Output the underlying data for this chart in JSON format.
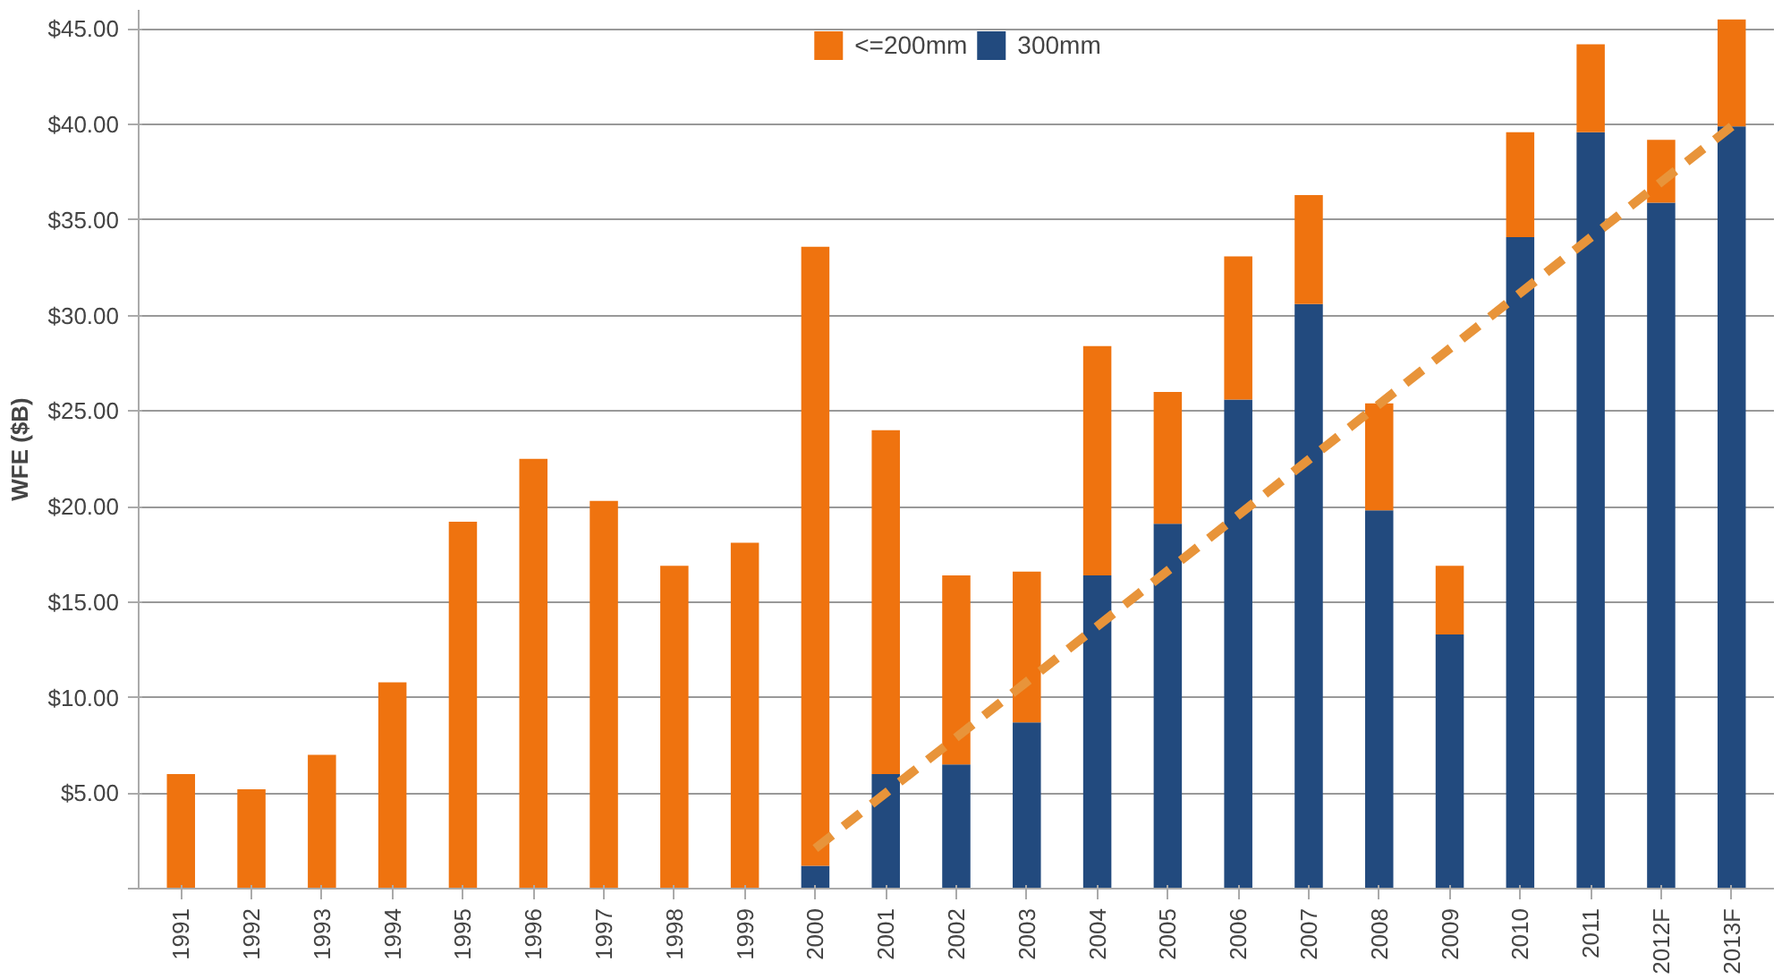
{
  "chart_data": {
    "type": "bar",
    "stacked": true,
    "ylabel": "WFE ($B)",
    "categories": [
      "1991",
      "1992",
      "1993",
      "1994",
      "1995",
      "1996",
      "1997",
      "1998",
      "1999",
      "2000",
      "2001",
      "2002",
      "2003",
      "2004",
      "2005",
      "2006",
      "2007",
      "2008",
      "2009",
      "2010",
      "2011",
      "2012F",
      "2013F"
    ],
    "series": [
      {
        "name": "300mm",
        "color": "#224a7e",
        "values": [
          0,
          0,
          0,
          0,
          0,
          0,
          0,
          0,
          0,
          1.2,
          6.0,
          6.5,
          8.7,
          16.4,
          19.1,
          25.6,
          30.6,
          19.8,
          13.3,
          34.1,
          39.6,
          35.9,
          39.9
        ]
      },
      {
        "name": "<=200mm",
        "color": "#ef730f",
        "values": [
          6.0,
          5.2,
          7.0,
          10.8,
          19.2,
          22.5,
          20.3,
          16.9,
          18.1,
          32.4,
          18.0,
          9.9,
          7.9,
          12.0,
          6.9,
          7.5,
          5.7,
          5.6,
          3.6,
          5.5,
          4.6,
          3.3,
          5.6
        ]
      },
      {
        "type": "line",
        "values": [
          null,
          null,
          null,
          null,
          null,
          null,
          null,
          null,
          null,
          2.1,
          null,
          null,
          null,
          null,
          null,
          null,
          null,
          null,
          null,
          null,
          null,
          null,
          39.9
        ],
        "color": "#e8943a",
        "line_style": "dashed"
      }
    ],
    "ylim": [
      0,
      46
    ],
    "yticks": [
      {
        "value": 0,
        "label": null
      },
      {
        "value": 5,
        "label": "$5.00"
      },
      {
        "value": 10,
        "label": "$10.00"
      },
      {
        "value": 15,
        "label": "$15.00"
      },
      {
        "value": 20,
        "label": "$20.00"
      },
      {
        "value": 25,
        "label": "$25.00"
      },
      {
        "value": 30,
        "label": "$30.00"
      },
      {
        "value": 35,
        "label": "$35.00"
      },
      {
        "value": 40,
        "label": "$40.00"
      },
      {
        "value": 45,
        "label": "$45.00"
      }
    ],
    "grid": "y",
    "legend": "top"
  }
}
